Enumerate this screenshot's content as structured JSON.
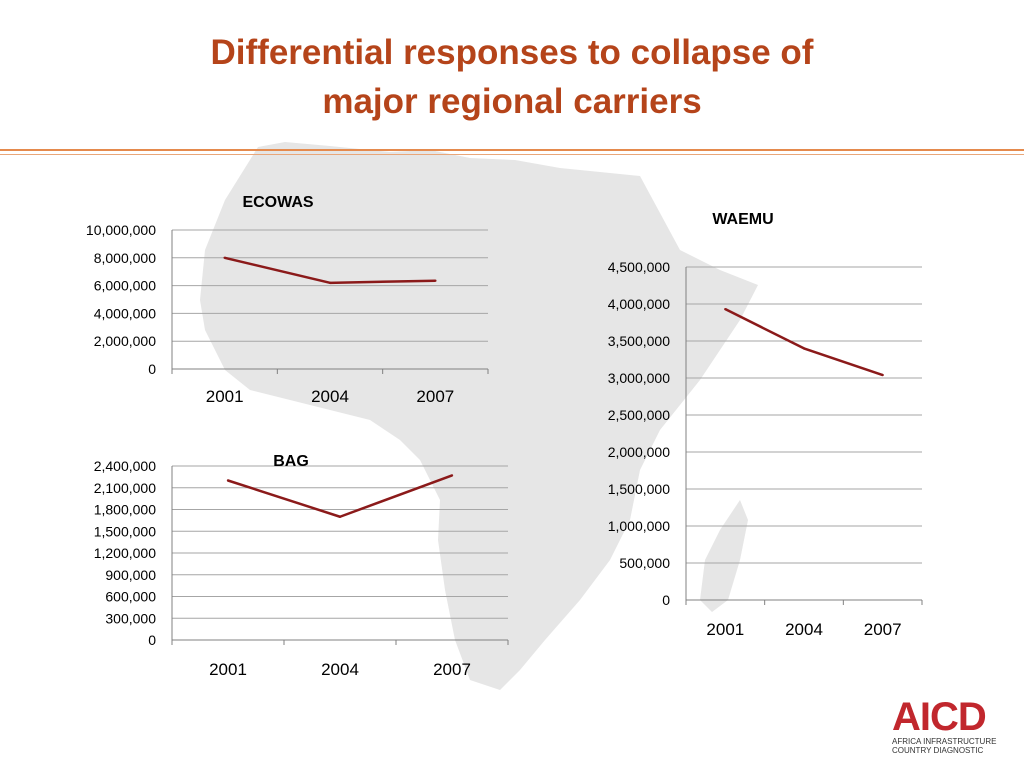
{
  "slide": {
    "title_line1": "Differential responses to collapse of",
    "title_line2": "major regional carriers"
  },
  "colors": {
    "title": "#b5441a",
    "series_line": "#8b1a1a",
    "gridline": "#a6a6a6",
    "map": "#e6e6e6",
    "logo_red": "#c1272d"
  },
  "background": {
    "icon": "africa-map-silhouette"
  },
  "logo": {
    "mark": "AICD",
    "line1": "AFRICA INFRASTRUCTURE",
    "line2": "COUNTRY DIAGNOSTIC"
  },
  "chart_data": [
    {
      "id": "ecowas",
      "type": "line",
      "title": "ECOWAS",
      "categories": [
        "2001",
        "2004",
        "2007"
      ],
      "values": [
        8000000,
        6200000,
        6350000
      ],
      "ylim": [
        0,
        10000000
      ],
      "yticks": [
        {
          "value": 0,
          "label": "0"
        },
        {
          "value": 2000000,
          "label": "2,000,000"
        },
        {
          "value": 4000000,
          "label": "4,000,000"
        },
        {
          "value": 6000000,
          "label": "6,000,000"
        },
        {
          "value": 8000000,
          "label": "8,000,000"
        },
        {
          "value": 10000000,
          "label": "10,000,000"
        }
      ],
      "grid": true,
      "legend": "none"
    },
    {
      "id": "waemu",
      "type": "line",
      "title": "WAEMU",
      "categories": [
        "2001",
        "2004",
        "2007"
      ],
      "values": [
        3930000,
        3400000,
        3040000
      ],
      "ylim": [
        0,
        4500000
      ],
      "yticks": [
        {
          "value": 0,
          "label": "0"
        },
        {
          "value": 500000,
          "label": "500,000"
        },
        {
          "value": 1000000,
          "label": "1,000,000"
        },
        {
          "value": 1500000,
          "label": "1,500,000"
        },
        {
          "value": 2000000,
          "label": "2,000,000"
        },
        {
          "value": 2500000,
          "label": "2,500,000"
        },
        {
          "value": 3000000,
          "label": "3,000,000"
        },
        {
          "value": 3500000,
          "label": "3,500,000"
        },
        {
          "value": 4000000,
          "label": "4,000,000"
        },
        {
          "value": 4500000,
          "label": "4,500,000"
        }
      ],
      "grid": true,
      "legend": "none"
    },
    {
      "id": "bag",
      "type": "line",
      "title": "BAG",
      "categories": [
        "2001",
        "2004",
        "2007"
      ],
      "values": [
        2200000,
        1700000,
        2270000
      ],
      "ylim": [
        0,
        2400000
      ],
      "yticks": [
        {
          "value": 0,
          "label": "0"
        },
        {
          "value": 300000,
          "label": "300,000"
        },
        {
          "value": 600000,
          "label": "600,000"
        },
        {
          "value": 900000,
          "label": "900,000"
        },
        {
          "value": 1200000,
          "label": "1,200,000"
        },
        {
          "value": 1500000,
          "label": "1,500,000"
        },
        {
          "value": 1800000,
          "label": "1,800,000"
        },
        {
          "value": 2100000,
          "label": "2,100,000"
        },
        {
          "value": 2400000,
          "label": "2,400,000"
        }
      ],
      "grid": true,
      "legend": "none"
    }
  ]
}
